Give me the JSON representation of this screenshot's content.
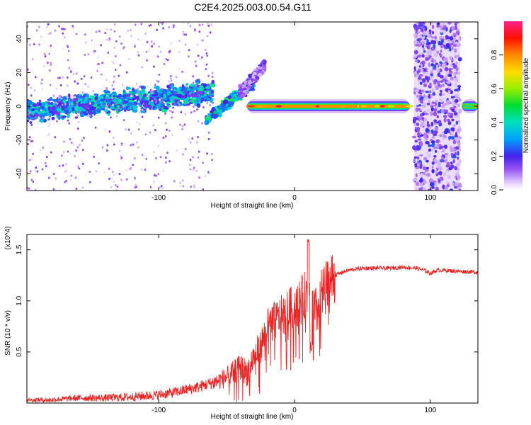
{
  "title": "C2E4.2025.003.00.54.G11",
  "colors": {
    "snr_line": "#ee2222",
    "spectrogram_background": "#ffffff"
  },
  "chart_data": [
    {
      "type": "heatmap",
      "xlabel": "Height of straight line (km)",
      "ylabel": "Frequency (Hz)",
      "xlim": [
        -197,
        135
      ],
      "ylim": [
        -50,
        50
      ],
      "x_ticks": [
        -100,
        0,
        100
      ],
      "x_tick_labels": [
        "-100",
        "0",
        "100"
      ],
      "y_ticks": [
        -40,
        -20,
        0,
        20,
        40
      ],
      "y_tick_labels": [
        "-40",
        "-20",
        "0",
        "20",
        "40"
      ],
      "grid": false,
      "colorbar": {
        "label": "Normalized spectral amplitude",
        "range": [
          0,
          1
        ],
        "ticks": [
          0.0,
          0.2,
          0.4,
          0.6,
          0.8
        ],
        "tick_labels": [
          "0.0",
          "0.2",
          "0.4",
          "0.6",
          "0.8"
        ],
        "colormap": "rainbow"
      },
      "features": [
        {
          "kind": "scatter_band",
          "x": [
            -197,
            -60
          ],
          "freq_start": -3,
          "freq_end": 8,
          "spread": 6,
          "amplitude": [
            0.15,
            0.45
          ]
        },
        {
          "kind": "rising_trace",
          "x": [
            -65,
            -30
          ],
          "freq_start": -8,
          "freq_end": 14,
          "amplitude": [
            0.2,
            0.55
          ]
        },
        {
          "kind": "rising_trace",
          "x": [
            -40,
            -22
          ],
          "freq_start": 8,
          "freq_end": 24,
          "amplitude": [
            0.05,
            0.2
          ]
        },
        {
          "kind": "steady_tone",
          "x": [
            -35,
            85
          ],
          "freq": 0,
          "amplitude": [
            0.6,
            1.0
          ]
        },
        {
          "kind": "noise_region",
          "x": [
            88,
            122
          ],
          "freq_range": [
            -50,
            50
          ],
          "amplitude": [
            0.05,
            0.25
          ]
        },
        {
          "kind": "tone_segment",
          "x": [
            123,
            135
          ],
          "freq": 0,
          "amplitude": [
            0.4,
            0.8
          ]
        }
      ]
    },
    {
      "type": "line",
      "xlabel": "Height of straight line (km)",
      "ylabel": "SNR (10 * v/v)",
      "y_scale_label": "(x10^4)",
      "xlim": [
        -197,
        135
      ],
      "ylim": [
        0,
        1.65
      ],
      "x_ticks": [
        -100,
        0,
        100
      ],
      "x_tick_labels": [
        "-100",
        "0",
        "100"
      ],
      "y_ticks": [
        0.5,
        1.0,
        1.5
      ],
      "y_tick_labels": [
        "0.5",
        "1.0",
        "1.5"
      ],
      "grid": false,
      "series": [
        {
          "x": [
            -197,
            -180,
            -160,
            -140,
            -120,
            -100,
            -90,
            -80,
            -70,
            -60,
            -50,
            -45,
            -40,
            -35,
            -30,
            -25,
            -20,
            -15,
            -10,
            -5,
            0,
            5,
            10,
            15,
            20,
            25,
            30,
            35,
            40,
            50,
            60,
            70,
            80,
            90,
            95,
            100,
            105,
            110,
            120,
            135
          ],
          "y": [
            0.03,
            0.03,
            0.05,
            0.05,
            0.06,
            0.08,
            0.1,
            0.13,
            0.16,
            0.2,
            0.25,
            0.3,
            0.35,
            0.3,
            0.45,
            0.55,
            0.75,
            0.8,
            0.85,
            0.9,
            0.95,
            1.0,
            1.1,
            0.85,
            1.05,
            1.15,
            1.25,
            1.28,
            1.3,
            1.32,
            1.32,
            1.32,
            1.33,
            1.32,
            1.3,
            1.27,
            1.3,
            1.3,
            1.29,
            1.28
          ]
        }
      ]
    }
  ]
}
